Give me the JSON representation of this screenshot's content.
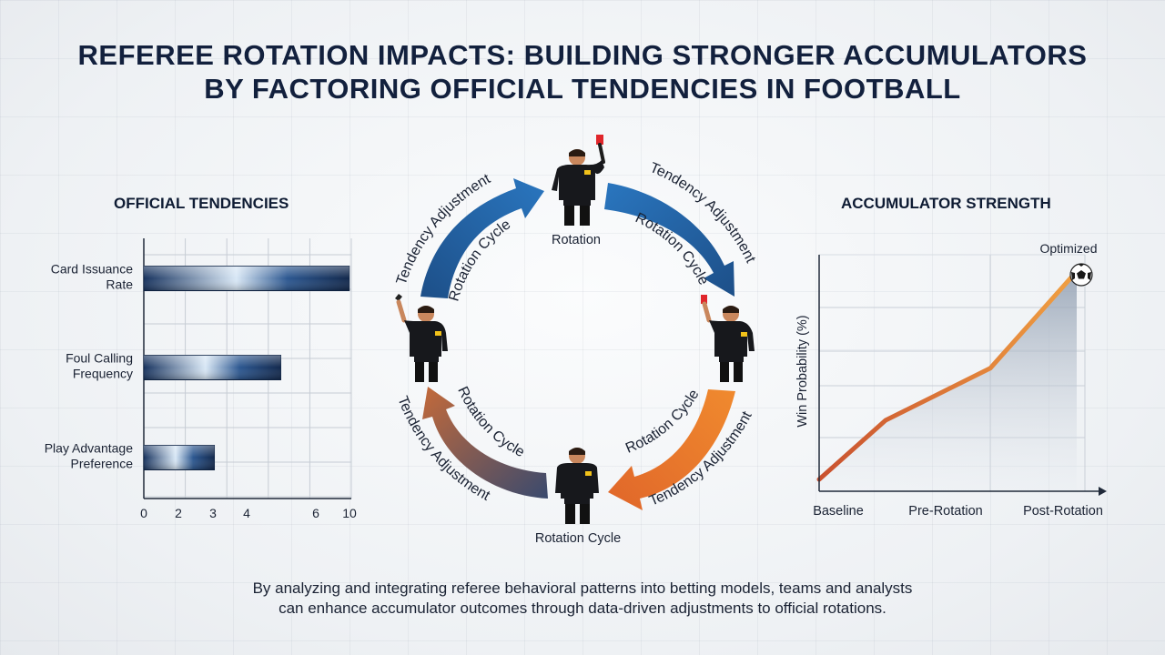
{
  "title": {
    "line1": "REFEREE ROTATION IMPACTS: BUILDING STRONGER ACCUMULATORS",
    "line2": "BY FACTORING OFFICIAL TENDENCIES IN FOOTBALL"
  },
  "left_panel": {
    "heading": "OFFICIAL TENDENCIES"
  },
  "right_panel": {
    "heading": "ACCUMULATOR STRENGTH"
  },
  "cycle": {
    "top_label": "Rotation",
    "bottom_label": "Rotation Cycle",
    "arc_outer_label": "Tendency Adjustment",
    "arc_inner_label": "Rotation Cycle",
    "arc_colors": [
      "#1f5f9f",
      "#1f5f9f",
      "#e8742c",
      "#7d6170"
    ]
  },
  "footer": {
    "line1": "By analyzing and integrating referee behavioral patterns into betting models, teams and analysts",
    "line2": "can enhance accumulator outcomes through data-driven adjustments to official rotations."
  },
  "chart_data": [
    {
      "type": "bar",
      "orientation": "horizontal",
      "categories": [
        [
          "Card Issuance",
          "Rate"
        ],
        [
          "Foul Calling",
          "Frequency"
        ],
        [
          "Play Advantage",
          "Preference"
        ]
      ],
      "values": [
        9.9,
        6.6,
        3.4
      ],
      "tick_labels": [
        "0",
        "2",
        "3",
        "4",
        "6",
        "10"
      ],
      "xlim": [
        0,
        10
      ],
      "grid": true,
      "bar_color": "#1b3f74"
    },
    {
      "type": "area",
      "categories": [
        "Baseline",
        "Pre-Rotation",
        "Post-Rotation"
      ],
      "values": [
        0.05,
        0.52,
        0.93
      ],
      "ylabel": "Win Probability (%)",
      "annotation": "Optimized",
      "grid": true,
      "line_colors": [
        "#c9512f",
        "#f0a042"
      ]
    }
  ]
}
